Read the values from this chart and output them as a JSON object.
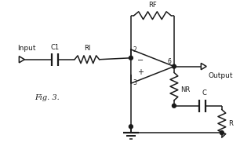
{
  "fig_label": "Fig. 3.",
  "background": "#ffffff",
  "line_color": "#1a1a1a",
  "labels": {
    "C1": "C1",
    "RI": "RI",
    "RF": "RF",
    "NR": "NR",
    "C": "C",
    "R": "R",
    "input": "Input",
    "output": "Output",
    "pin2": "2",
    "pin3": "3",
    "pin6": "6"
  }
}
